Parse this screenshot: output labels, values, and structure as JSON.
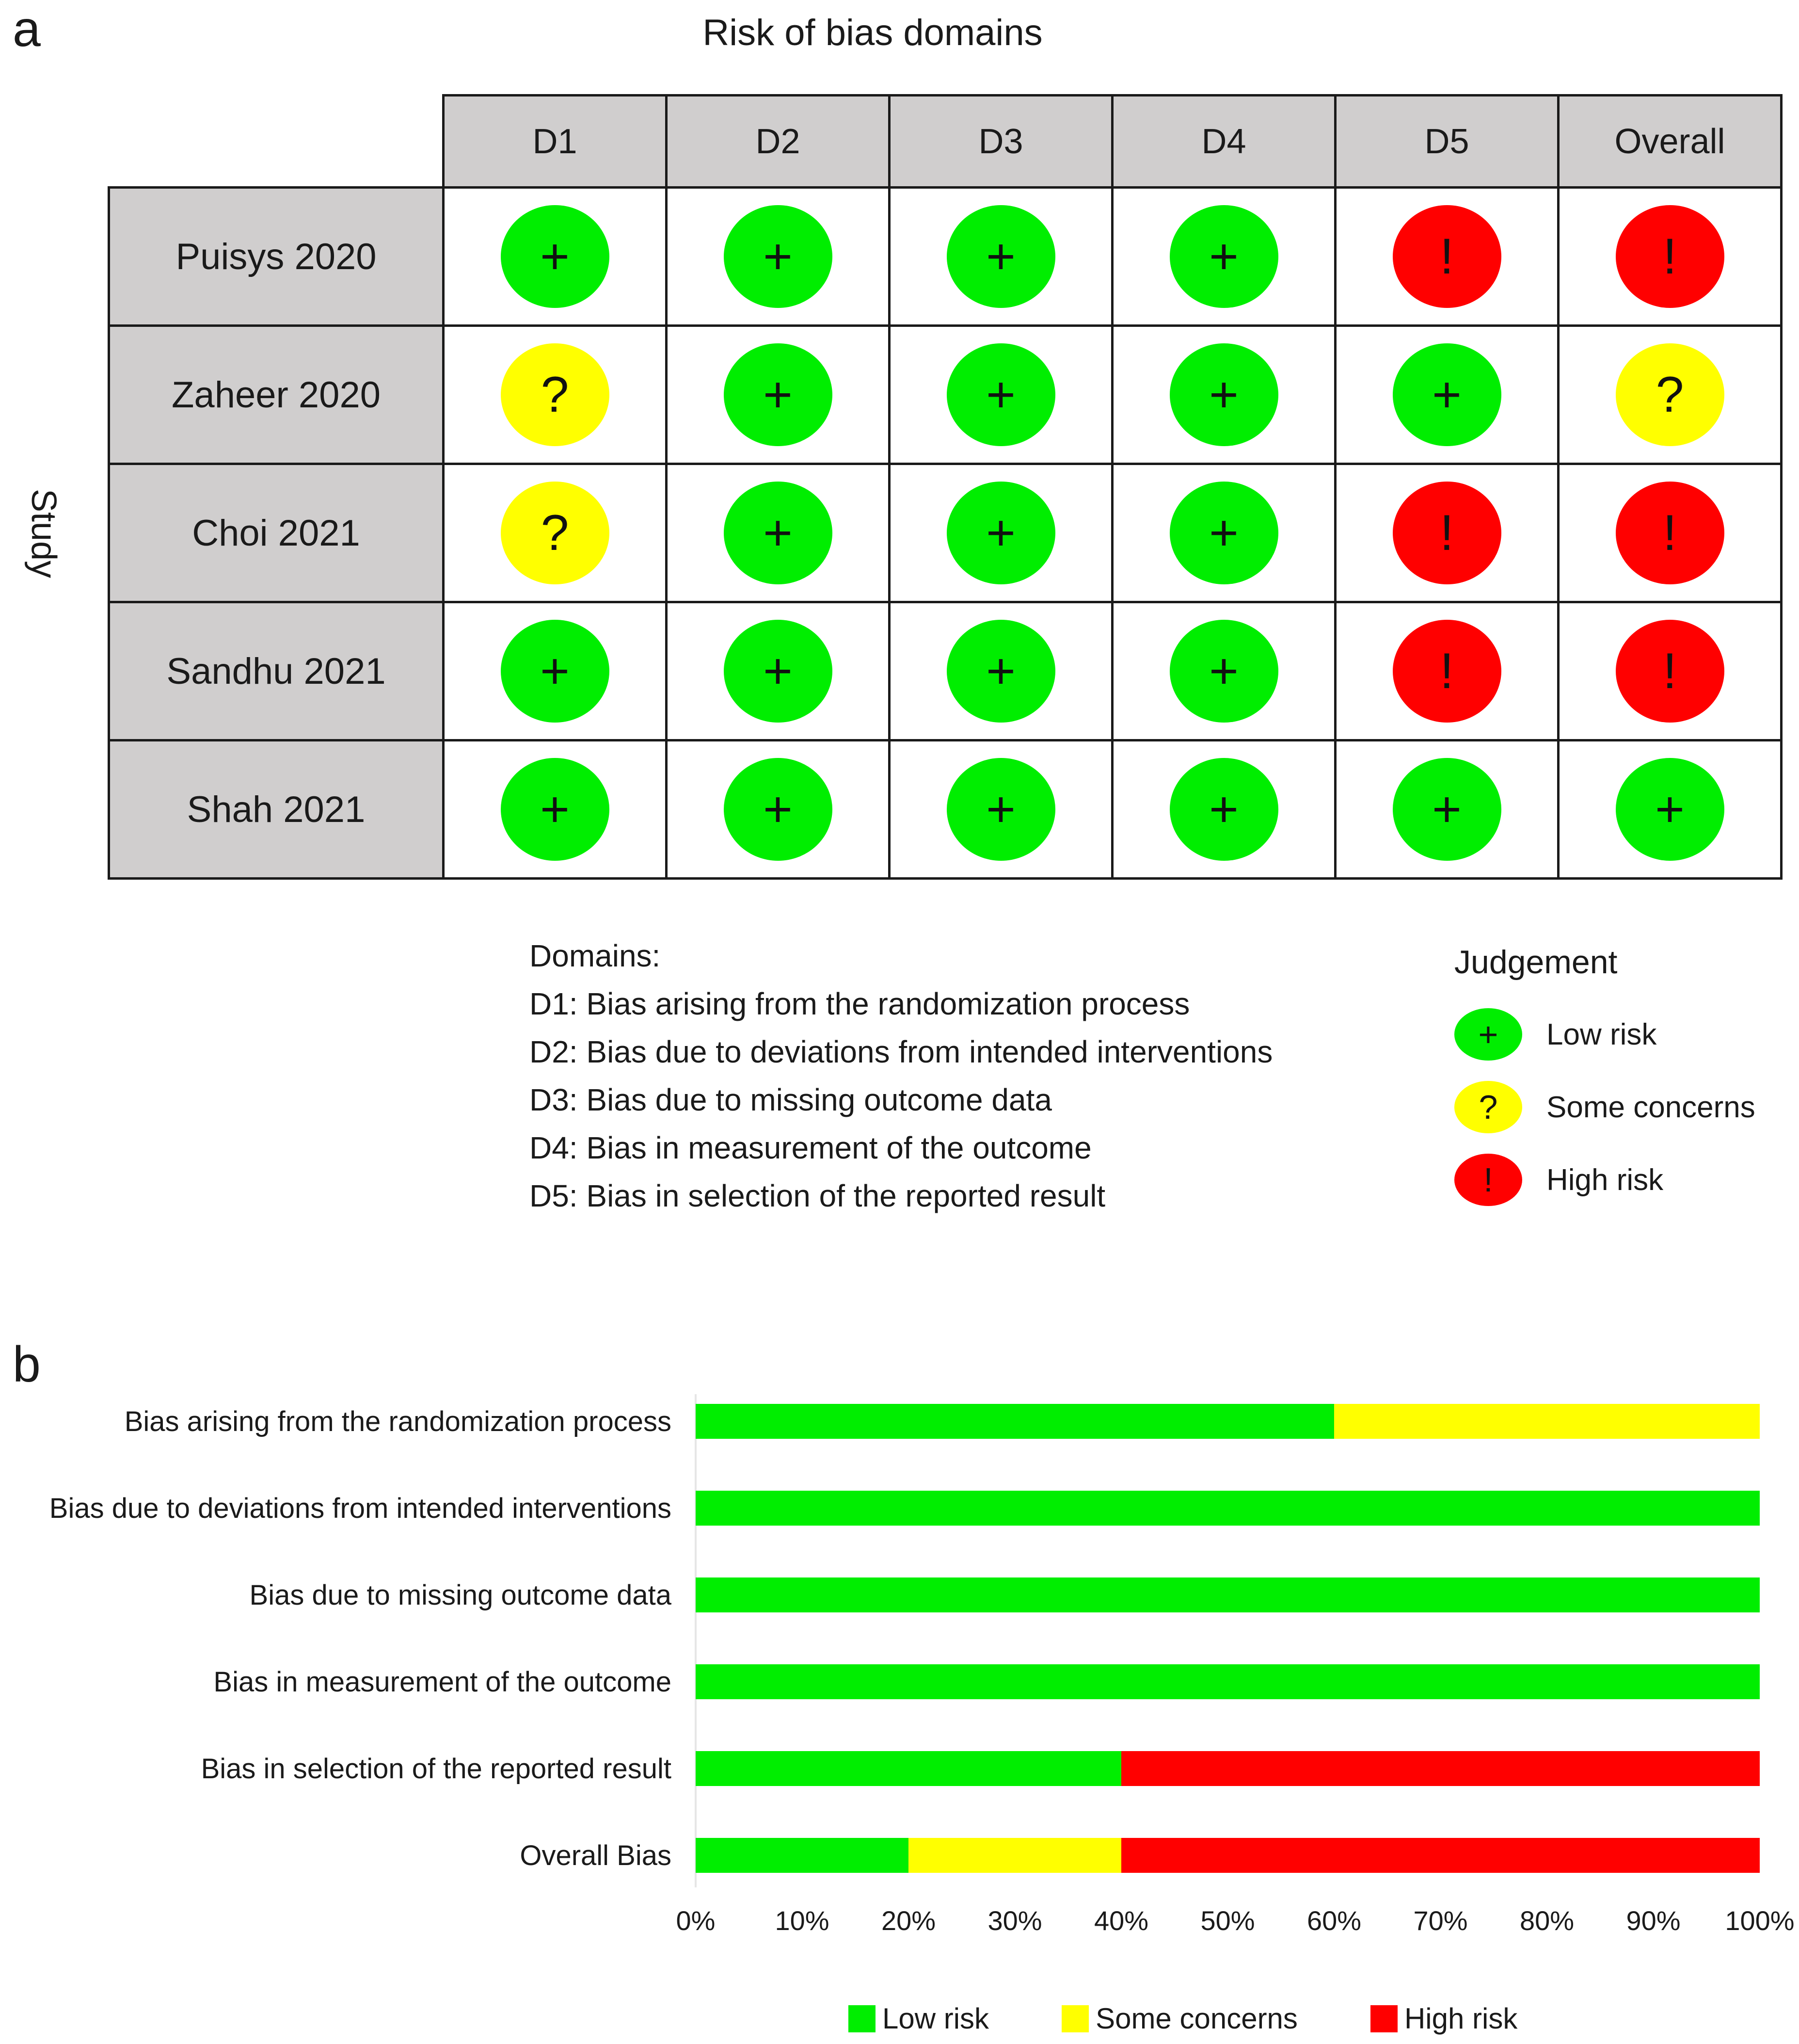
{
  "panel_a_letter": "a",
  "panel_b_letter": "b",
  "colors": {
    "low": "#00ee00",
    "some": "#ffff00",
    "high": "#ff0000",
    "header_bg": "#d0cece"
  },
  "symbols": {
    "low": "+",
    "some": "?",
    "high": "!"
  },
  "chart_data": [
    {
      "type": "table",
      "title": "Risk of bias domains",
      "ylabel": "Study",
      "columns": [
        "D1",
        "D2",
        "D3",
        "D4",
        "D5",
        "Overall"
      ],
      "rows": [
        {
          "study": "Puisys 2020",
          "judgements": [
            "low",
            "low",
            "low",
            "low",
            "high",
            "high"
          ]
        },
        {
          "study": "Zaheer 2020",
          "judgements": [
            "some",
            "low",
            "low",
            "low",
            "low",
            "some"
          ]
        },
        {
          "study": "Choi 2021",
          "judgements": [
            "some",
            "low",
            "low",
            "low",
            "high",
            "high"
          ]
        },
        {
          "study": "Sandhu 2021",
          "judgements": [
            "low",
            "low",
            "low",
            "low",
            "high",
            "high"
          ]
        },
        {
          "study": "Shah 2021",
          "judgements": [
            "low",
            "low",
            "low",
            "low",
            "low",
            "low"
          ]
        }
      ],
      "domains_title": "Domains:",
      "domains": [
        "D1: Bias arising from the randomization process",
        "D2: Bias due to deviations from intended interventions",
        "D3: Bias due to missing outcome data",
        "D4: Bias in measurement of the outcome",
        "D5: Bias in selection of the reported result"
      ],
      "judgement_title": "Judgement",
      "judgement_legend": [
        {
          "key": "low",
          "label": "Low risk"
        },
        {
          "key": "some",
          "label": "Some concerns"
        },
        {
          "key": "high",
          "label": "High risk"
        }
      ]
    },
    {
      "type": "bar",
      "stacked": true,
      "orientation": "horizontal",
      "categories": [
        "Bias arising from the randomization process",
        "Bias due to deviations from intended interventions",
        "Bias due to missing outcome data",
        "Bias in measurement of the outcome",
        "Bias in selection of the reported result",
        "Overall Bias"
      ],
      "series": [
        {
          "name": "Low risk",
          "key": "low",
          "values": [
            60,
            100,
            100,
            100,
            40,
            20
          ]
        },
        {
          "name": "Some concerns",
          "key": "some",
          "values": [
            40,
            0,
            0,
            0,
            0,
            20
          ]
        },
        {
          "name": "High risk",
          "key": "high",
          "values": [
            0,
            0,
            0,
            0,
            60,
            60
          ]
        }
      ],
      "xlim": [
        0,
        100
      ],
      "xticks": [
        "0%",
        "10%",
        "20%",
        "30%",
        "40%",
        "50%",
        "60%",
        "70%",
        "80%",
        "90%",
        "100%"
      ],
      "legend_position": "bottom"
    }
  ]
}
